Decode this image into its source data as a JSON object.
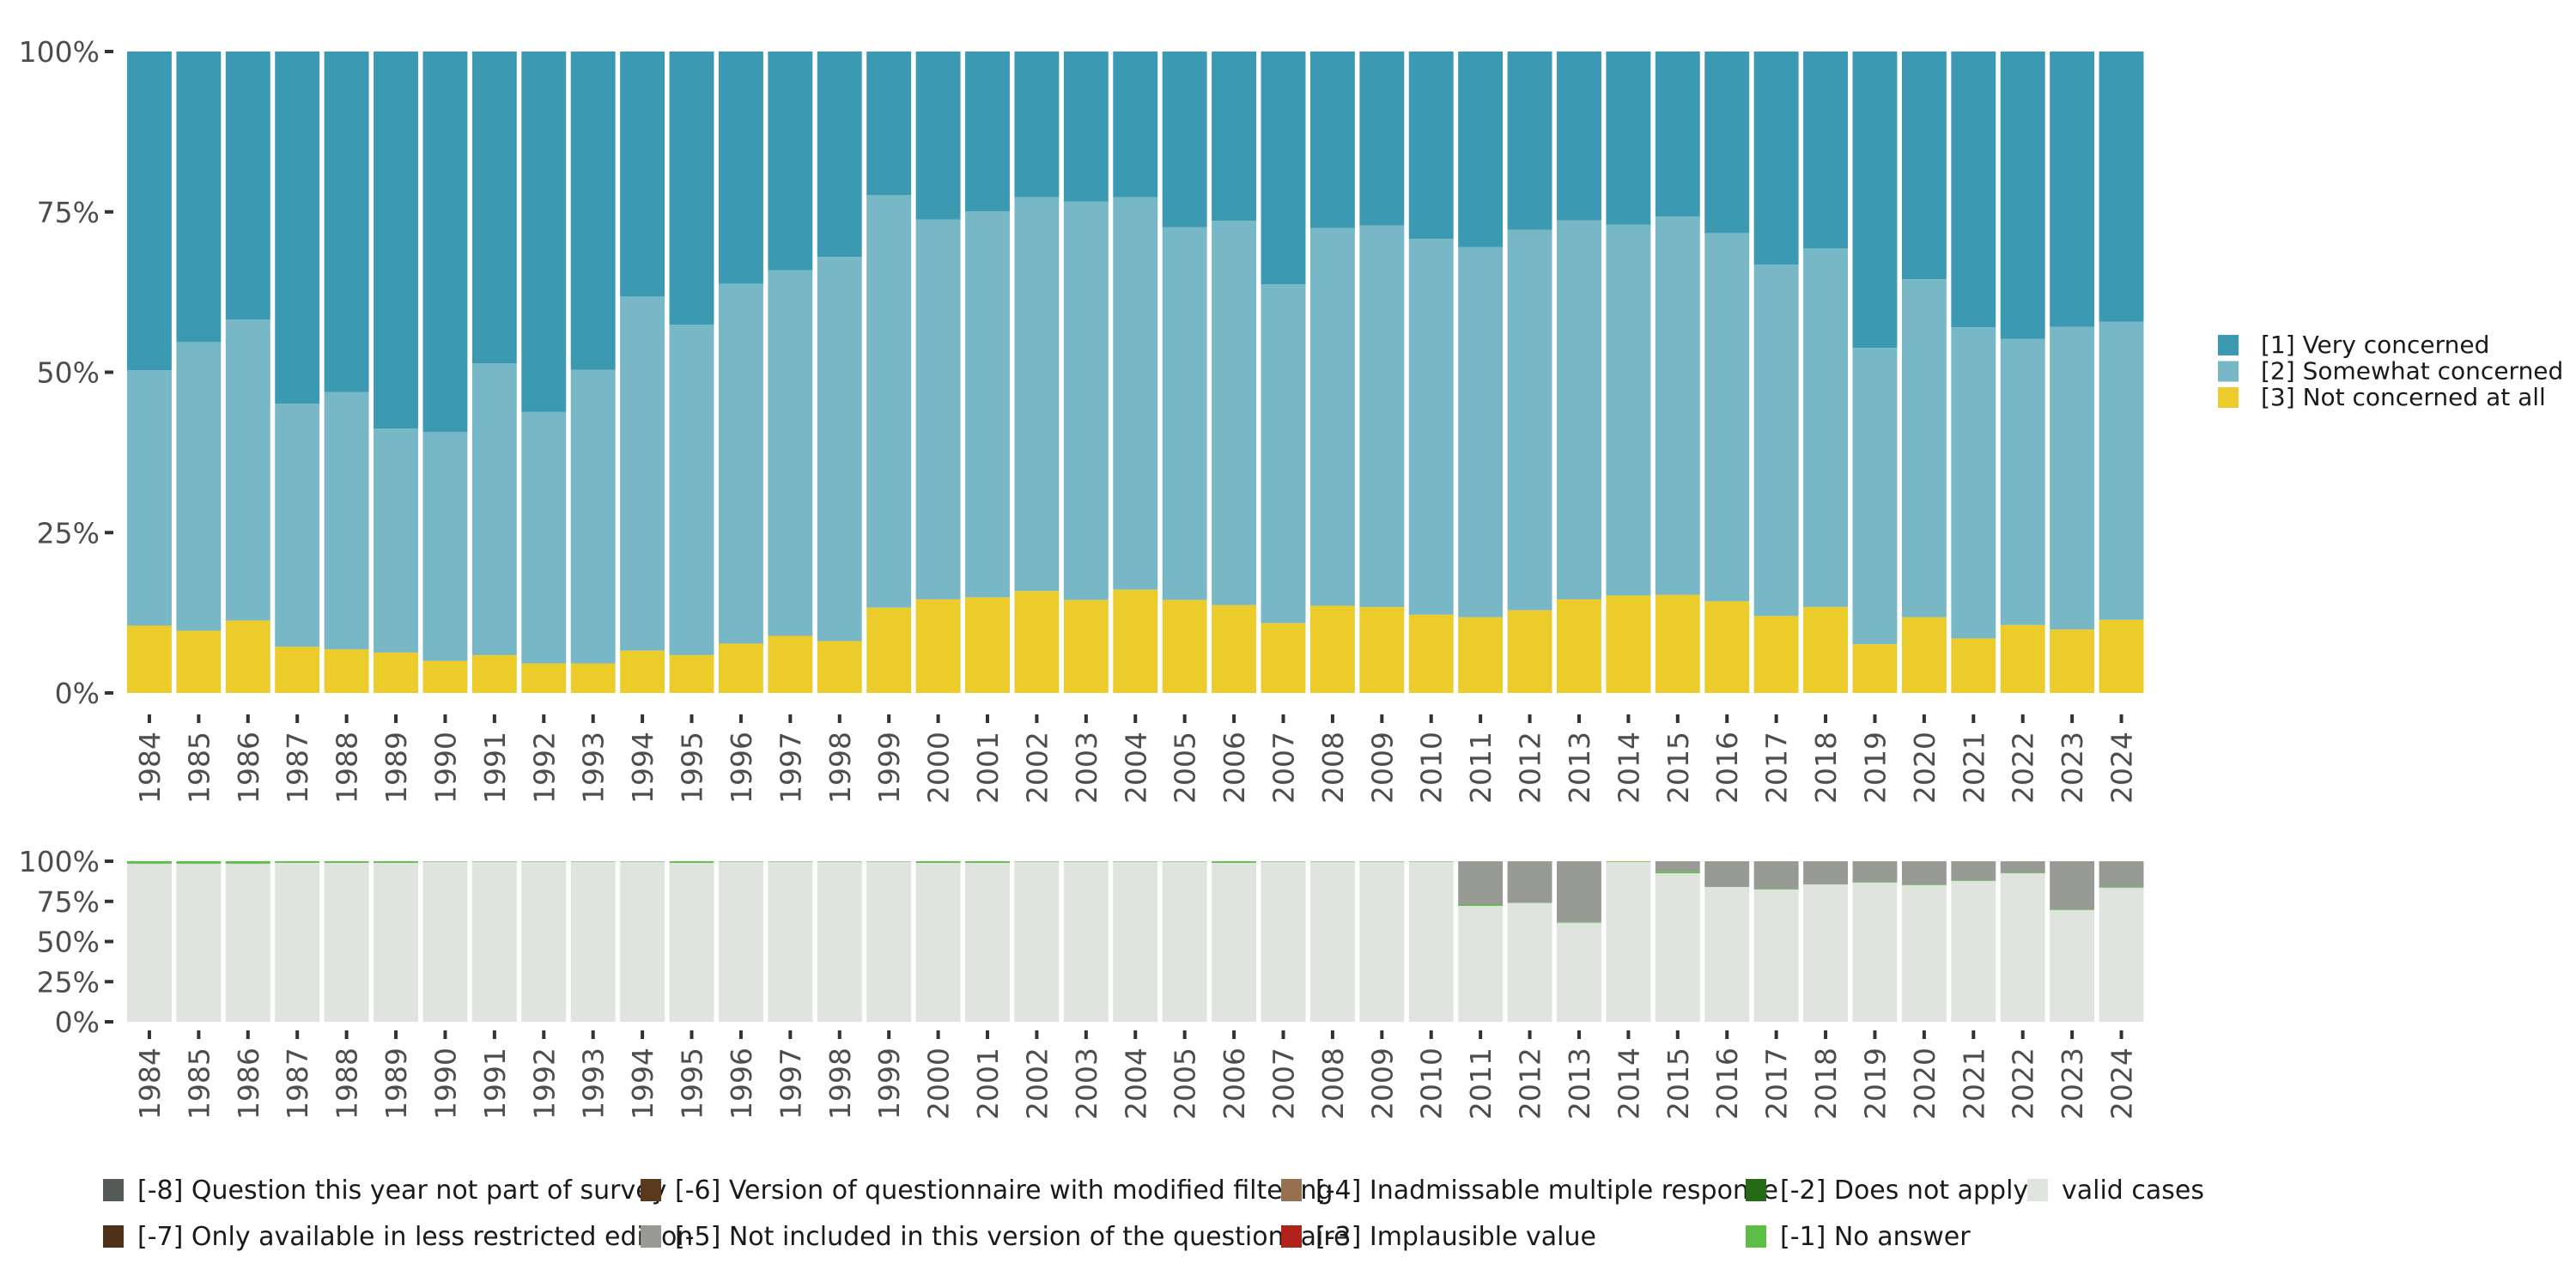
{
  "chart_data": [
    {
      "type": "bar",
      "stacked": true,
      "normalized": true,
      "title": "",
      "xlabel": "",
      "ylabel": "",
      "ylim": [
        0,
        100
      ],
      "y_ticks": [
        "0%",
        "25%",
        "50%",
        "75%",
        "100%"
      ],
      "grid": false,
      "legend_position": "right",
      "categories": [
        "1984",
        "1985",
        "1986",
        "1987",
        "1988",
        "1989",
        "1990",
        "1991",
        "1992",
        "1993",
        "1994",
        "1995",
        "1996",
        "1997",
        "1998",
        "1999",
        "2000",
        "2001",
        "2002",
        "2003",
        "2004",
        "2005",
        "2006",
        "2007",
        "2008",
        "2009",
        "2010",
        "2011",
        "2012",
        "2013",
        "2014",
        "2015",
        "2016",
        "2017",
        "2018",
        "2019",
        "2020",
        "2021",
        "2022",
        "2023",
        "2024"
      ],
      "series": [
        {
          "name": "[3] Not concerned at all",
          "color": "#EBCC2A",
          "values": [
            10.5,
            9.7,
            11.3,
            7.2,
            6.8,
            6.3,
            5.0,
            5.9,
            4.6,
            4.6,
            6.6,
            5.9,
            7.7,
            8.9,
            8.1,
            13.3,
            14.6,
            14.9,
            15.9,
            14.5,
            16.1,
            14.5,
            13.7,
            10.9,
            13.6,
            13.4,
            12.2,
            11.8,
            12.9,
            14.6,
            15.2,
            15.3,
            14.3,
            12.0,
            13.4,
            7.6,
            11.8,
            8.5,
            10.6,
            9.9,
            11.4
          ]
        },
        {
          "name": "[2] Somewhat concerned",
          "color": "#78B7C5",
          "values": [
            39.8,
            45.0,
            46.9,
            37.9,
            40.1,
            34.9,
            35.7,
            45.5,
            39.2,
            45.8,
            55.2,
            51.5,
            56.1,
            57.0,
            59.9,
            64.3,
            59.2,
            60.2,
            61.4,
            62.1,
            61.2,
            58.1,
            59.9,
            52.8,
            58.9,
            59.5,
            58.6,
            57.7,
            59.3,
            59.1,
            57.8,
            59.0,
            57.4,
            54.8,
            55.9,
            46.2,
            52.7,
            48.5,
            44.6,
            47.2,
            46.5
          ]
        },
        {
          "name": "[1] Very concerned",
          "color": "#3B9AB2",
          "values": [
            49.7,
            45.3,
            41.8,
            54.9,
            53.1,
            58.8,
            59.3,
            48.6,
            56.2,
            49.6,
            38.2,
            42.6,
            36.2,
            34.1,
            32.0,
            22.4,
            26.2,
            24.9,
            22.7,
            23.4,
            22.7,
            27.4,
            26.4,
            36.3,
            27.5,
            27.1,
            29.2,
            30.5,
            27.8,
            26.3,
            27.0,
            25.7,
            28.3,
            33.2,
            30.7,
            46.2,
            35.5,
            43.0,
            44.8,
            42.9,
            42.1
          ]
        }
      ],
      "legend": [
        {
          "label": "[1] Very concerned",
          "color": "#3B9AB2"
        },
        {
          "label": "[2] Somewhat concerned",
          "color": "#78B7C5"
        },
        {
          "label": "[3] Not concerned at all",
          "color": "#EBCC2A"
        }
      ]
    },
    {
      "type": "bar",
      "stacked": true,
      "normalized": true,
      "title": "",
      "xlabel": "",
      "ylabel": "",
      "ylim": [
        0,
        100
      ],
      "y_ticks": [
        "0%",
        "25%",
        "50%",
        "75%",
        "100%"
      ],
      "grid": false,
      "legend_position": "bottom",
      "categories": [
        "1984",
        "1985",
        "1986",
        "1987",
        "1988",
        "1989",
        "1990",
        "1991",
        "1992",
        "1993",
        "1994",
        "1995",
        "1996",
        "1997",
        "1998",
        "1999",
        "2000",
        "2001",
        "2002",
        "2003",
        "2004",
        "2005",
        "2006",
        "2007",
        "2008",
        "2009",
        "2010",
        "2011",
        "2012",
        "2013",
        "2014",
        "2015",
        "2016",
        "2017",
        "2018",
        "2019",
        "2020",
        "2021",
        "2022",
        "2023",
        "2024"
      ],
      "series": [
        {
          "name": "valid cases",
          "color": "#E0E4DF",
          "values": [
            98.5,
            98.5,
            98.5,
            99.0,
            99.0,
            99.0,
            99.7,
            99.7,
            99.7,
            99.7,
            99.7,
            99.0,
            99.7,
            99.7,
            99.7,
            99.7,
            99.0,
            99.0,
            99.7,
            99.7,
            99.7,
            99.7,
            99.0,
            99.7,
            99.7,
            99.7,
            99.7,
            72.2,
            74.0,
            61.7,
            99.6,
            92.5,
            84.0,
            82.4,
            85.6,
            86.7,
            85.1,
            87.7,
            92.5,
            69.6,
            83.5
          ]
        },
        {
          "name": "[-1] No answer",
          "color": "#5BBF45",
          "values": [
            1.5,
            1.5,
            1.5,
            1.0,
            1.0,
            1.0,
            0.3,
            0.3,
            0.3,
            0.3,
            0.3,
            1.0,
            0.3,
            0.3,
            0.3,
            0.3,
            1.0,
            1.0,
            0.3,
            0.3,
            0.3,
            0.3,
            1.0,
            0.3,
            0.3,
            0.3,
            0.3,
            0.8,
            0.3,
            0.4,
            0.4,
            1.0,
            0.0,
            0.4,
            0.0,
            0.4,
            0.4,
            0.4,
            0.4,
            0.4,
            0.4
          ]
        },
        {
          "name": "[-2] Does not apply",
          "color": "#256B16",
          "values": [
            0,
            0,
            0,
            0,
            0,
            0,
            0,
            0,
            0,
            0,
            0,
            0,
            0,
            0,
            0,
            0,
            0,
            0,
            0,
            0,
            0,
            0,
            0,
            0,
            0,
            0,
            0,
            0,
            0,
            0,
            0,
            0,
            0,
            0,
            0,
            0,
            0,
            0,
            0,
            0,
            0
          ]
        },
        {
          "name": "[-3] Implausible value",
          "color": "#B2211C",
          "values": [
            0,
            0,
            0,
            0,
            0,
            0,
            0,
            0,
            0,
            0,
            0,
            0,
            0,
            0,
            0,
            0,
            0,
            0,
            0,
            0,
            0,
            0,
            0,
            0,
            0,
            0,
            0,
            0,
            0,
            0,
            0,
            0,
            0,
            0,
            0,
            0,
            0,
            0,
            0,
            0,
            0
          ]
        },
        {
          "name": "[-4] Inadmissable multiple response",
          "color": "#967150",
          "values": [
            0,
            0,
            0,
            0,
            0,
            0,
            0,
            0,
            0,
            0,
            0,
            0,
            0,
            0,
            0,
            0,
            0,
            0,
            0,
            0,
            0,
            0,
            0,
            0,
            0,
            0,
            0,
            0,
            0,
            0,
            0,
            0,
            0,
            0,
            0,
            0,
            0,
            0,
            0,
            0,
            0
          ]
        },
        {
          "name": "[-5] Not included in this version of the questionnaire",
          "color": "#989B94",
          "values": [
            0,
            0,
            0,
            0,
            0,
            0,
            0,
            0,
            0,
            0,
            0,
            0,
            0,
            0,
            0,
            0,
            0,
            0,
            0,
            0,
            0,
            0,
            0,
            0,
            0,
            0,
            0,
            27.0,
            25.7,
            37.9,
            0,
            6.5,
            16.0,
            17.2,
            14.4,
            12.9,
            14.5,
            11.9,
            7.1,
            30.0,
            16.1
          ]
        },
        {
          "name": "[-6] Version of questionnaire with modified filtering",
          "color": "#5A3A1C",
          "values": [
            0,
            0,
            0,
            0,
            0,
            0,
            0,
            0,
            0,
            0,
            0,
            0,
            0,
            0,
            0,
            0,
            0,
            0,
            0,
            0,
            0,
            0,
            0,
            0,
            0,
            0,
            0,
            0,
            0,
            0,
            0,
            0,
            0,
            0,
            0,
            0,
            0,
            0,
            0,
            0,
            0
          ]
        },
        {
          "name": "[-7] Only available in less restricted edition",
          "color": "#4E3118",
          "values": [
            0,
            0,
            0,
            0,
            0,
            0,
            0,
            0,
            0,
            0,
            0,
            0,
            0,
            0,
            0,
            0,
            0,
            0,
            0,
            0,
            0,
            0,
            0,
            0,
            0,
            0,
            0,
            0,
            0,
            0,
            0,
            0,
            0,
            0,
            0,
            0,
            0,
            0,
            0,
            0,
            0
          ]
        },
        {
          "name": "[-8] Question this year not part of survey",
          "color": "#545B57",
          "values": [
            0,
            0,
            0,
            0,
            0,
            0,
            0,
            0,
            0,
            0,
            0,
            0,
            0,
            0,
            0,
            0,
            0,
            0,
            0,
            0,
            0,
            0,
            0,
            0,
            0,
            0,
            0,
            0,
            0,
            0,
            0,
            0,
            0,
            0,
            0,
            0,
            0,
            0,
            0,
            0,
            0
          ]
        }
      ],
      "legend": [
        {
          "label": "[-8] Question this year not part of survey",
          "color": "#545B57"
        },
        {
          "label": "[-7] Only available in less restricted edition",
          "color": "#4E3118"
        },
        {
          "label": "[-6] Version of questionnaire with modified filtering",
          "color": "#5A3A1C"
        },
        {
          "label": "[-5] Not included in this version of the questionnaire",
          "color": "#989B94"
        },
        {
          "label": "[-4] Inadmissable multiple response",
          "color": "#967150"
        },
        {
          "label": "[-3] Implausible value",
          "color": "#B2211C"
        },
        {
          "label": "[-2] Does not apply",
          "color": "#256B16"
        },
        {
          "label": "[-1] No answer",
          "color": "#5BBF45"
        },
        {
          "label": "valid cases",
          "color": "#E0E4DF"
        }
      ]
    }
  ]
}
